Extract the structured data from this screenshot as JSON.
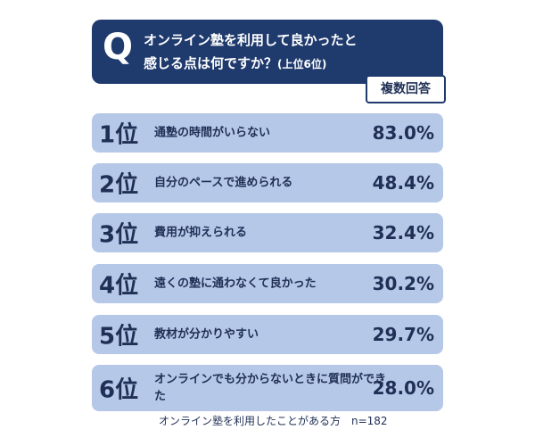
{
  "header": {
    "q": "Q",
    "title_line1": "オンライン塾を利用して良かったと",
    "title_line2": "感じる点は何ですか？",
    "title_note": "(上位6位)",
    "tab": "複数回答"
  },
  "rows": [
    {
      "rank": "1位",
      "label": "通塾の時間がいらない",
      "percent": "83.0%"
    },
    {
      "rank": "2位",
      "label": "自分のペースで進められる",
      "percent": "48.4%"
    },
    {
      "rank": "3位",
      "label": "費用が抑えられる",
      "percent": "32.4%"
    },
    {
      "rank": "4位",
      "label": "遠くの塾に通わなくて良かった",
      "percent": "30.2%"
    },
    {
      "rank": "5位",
      "label": "教材が分かりやすい",
      "percent": "29.7%"
    },
    {
      "rank": "6位",
      "label": "オンラインでも分からないときに質問ができた",
      "percent": "28.0%"
    }
  ],
  "footer": "オンライン塾を利用したことがある方　n=182"
}
